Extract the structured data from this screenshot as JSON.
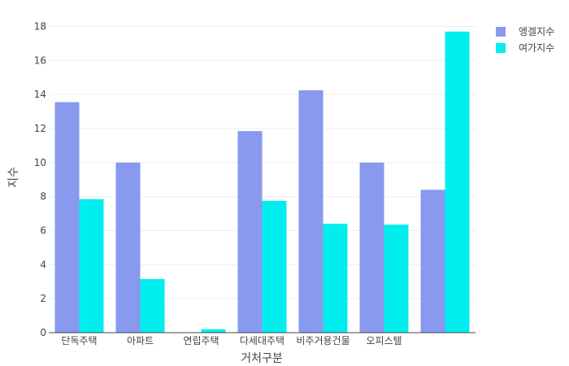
{
  "chart_data": {
    "type": "bar",
    "categories": [
      "단독주택",
      "아파트",
      "연립주택",
      "다세대주택",
      "비주거용건물",
      "오피스텔",
      ""
    ],
    "series": [
      {
        "name": "엥겔지수",
        "color": "#8899ee",
        "values": [
          13.55,
          10.0,
          0,
          11.85,
          14.25,
          10.0,
          8.4
        ]
      },
      {
        "name": "여가지수",
        "color": "#00eeee",
        "values": [
          7.85,
          3.15,
          0.2,
          7.75,
          6.4,
          6.35,
          17.7
        ]
      }
    ],
    "xlabel": "거처구분",
    "ylabel": "지수",
    "ylim": [
      0,
      18.6
    ],
    "yticks": [
      0,
      2,
      4,
      6,
      8,
      10,
      12,
      14,
      16,
      18
    ],
    "grid": true,
    "legend": "top-right"
  }
}
